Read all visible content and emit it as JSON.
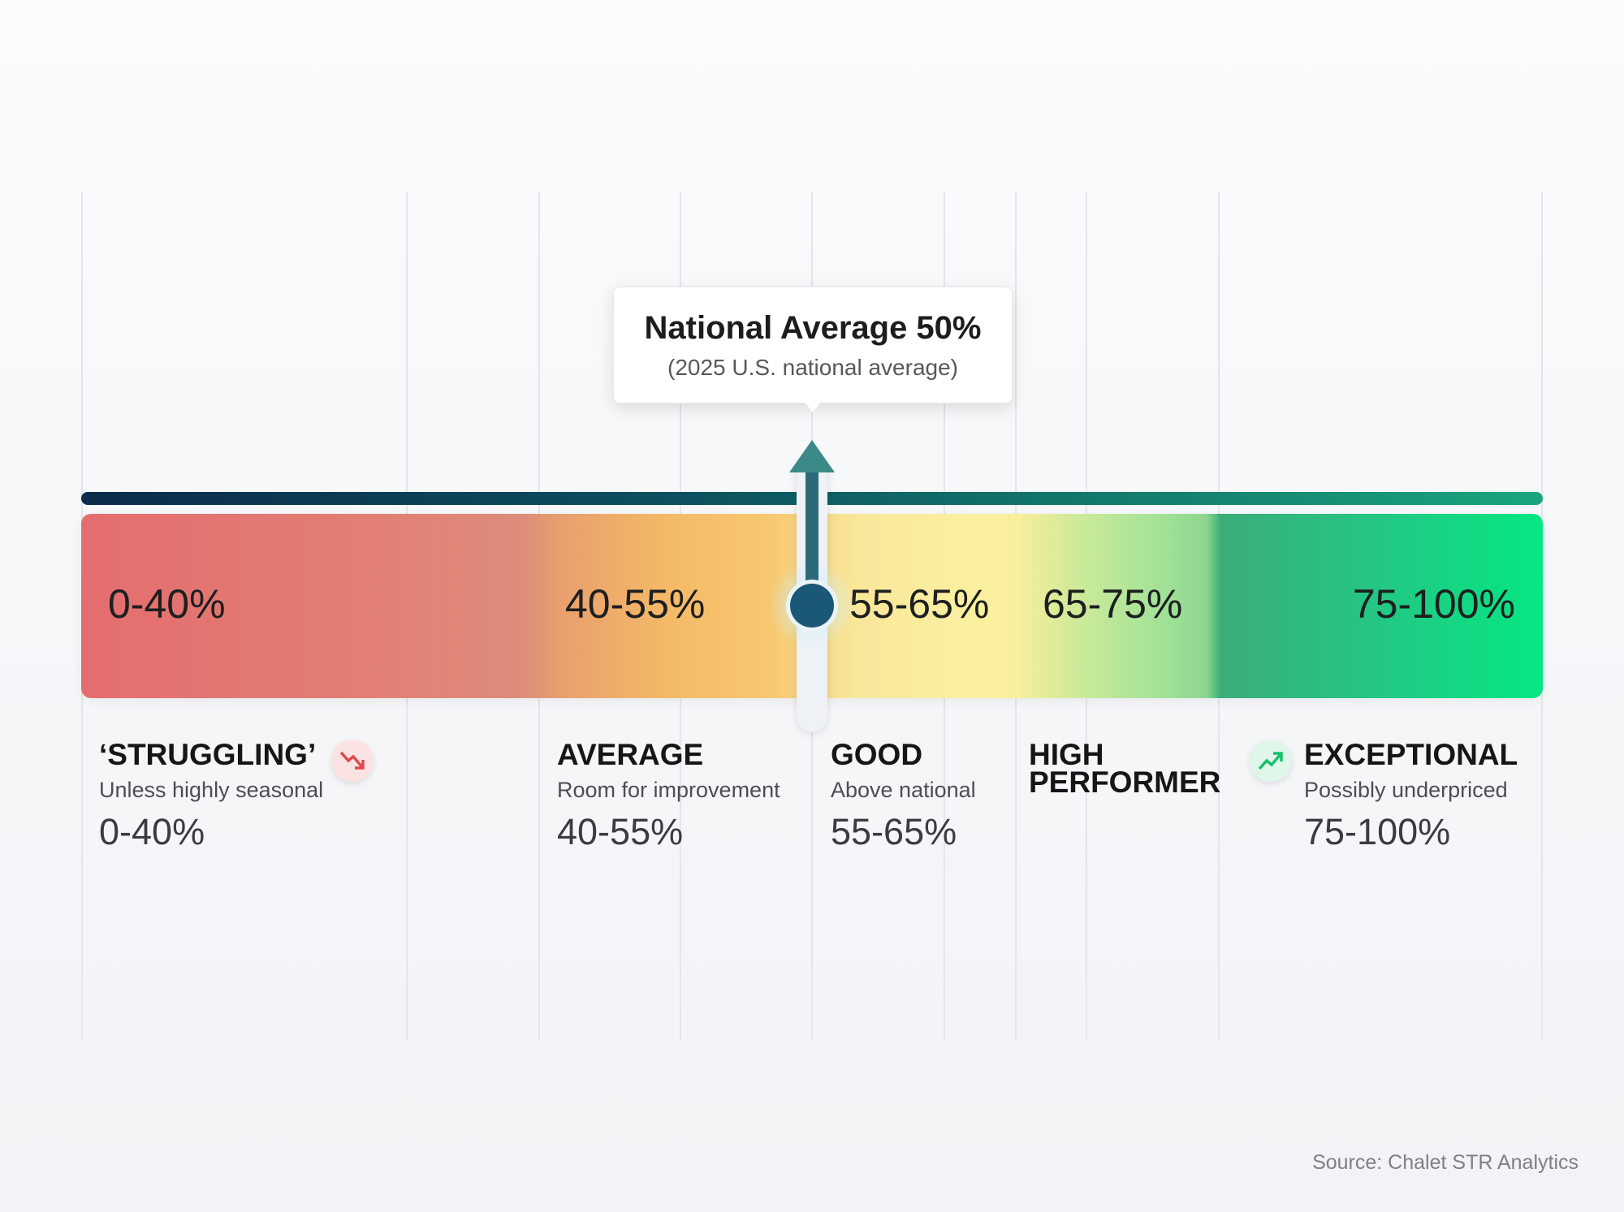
{
  "scale": {
    "segments": [
      {
        "label": "0-40%",
        "min": 0,
        "max": 40,
        "color": "#e46d6f"
      },
      {
        "label": "40-55%",
        "min": 40,
        "max": 55,
        "color": "#f4b967"
      },
      {
        "label": "55-65%",
        "min": 55,
        "max": 65,
        "color": "#fbf0a0"
      },
      {
        "label": "65-75%",
        "min": 65,
        "max": 75,
        "color": "#a1e297"
      },
      {
        "label": "75-100%",
        "min": 75,
        "max": 100,
        "color": "#05e783"
      }
    ],
    "marker": {
      "value": 50,
      "title": "National Average 50%",
      "subtitle": "(2025 U.S. national average)",
      "color": "#1b5776"
    }
  },
  "categories": [
    {
      "name": "‘STRUGGLING’",
      "description": "Unless highly seasonal",
      "range": "0-40%",
      "icon": "trend-down-icon",
      "icon_color": "#e0494d"
    },
    {
      "name": "AVERAGE",
      "description": "Room for improvement",
      "range": "40-55%"
    },
    {
      "name": "GOOD",
      "description": "Above national",
      "range": "55-65%"
    },
    {
      "name_line1": "HIGH",
      "name_line2": "PERFORMER"
    },
    {
      "name": "EXCEPTIONAL",
      "description": "Possibly underpriced",
      "range": "75-100%",
      "icon": "trend-up-icon",
      "icon_color": "#19c06e"
    }
  ],
  "source": "Source: Chalet STR Analytics"
}
